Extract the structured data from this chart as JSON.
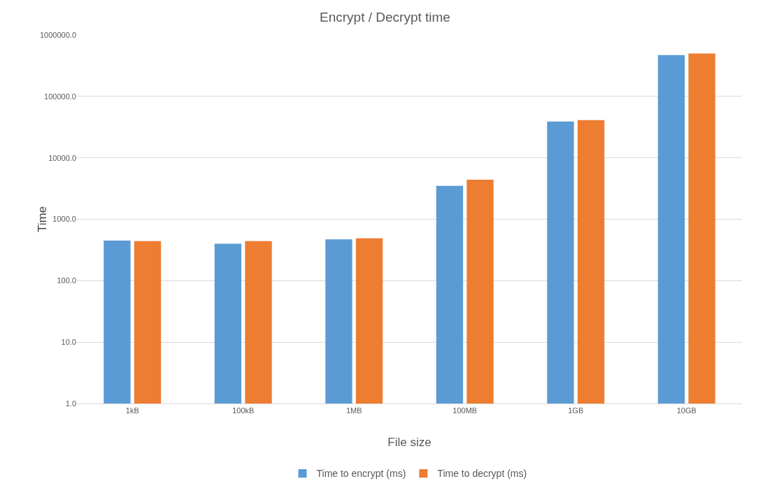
{
  "chart_data": {
    "type": "bar",
    "title": "Encrypt / Decrypt time",
    "xlabel": "File size",
    "ylabel": "Time",
    "categories": [
      "1kB",
      "100kB",
      "1MB",
      "100MB",
      "1GB",
      "10GB"
    ],
    "series": [
      {
        "name": "Time to encrypt (ms)",
        "color": "#5b9bd5",
        "values": [
          450,
          400,
          470,
          3500,
          39000,
          470000
        ]
      },
      {
        "name": "Time to decrypt (ms)",
        "color": "#ed7d31",
        "values": [
          440,
          440,
          490,
          4400,
          41000,
          500000
        ]
      }
    ],
    "log": "y",
    "ylim": [
      1,
      1000000
    ],
    "yticks": [
      {
        "value": 1,
        "label": "1.0"
      },
      {
        "value": 10,
        "label": "10.0"
      },
      {
        "value": 100,
        "label": "100.0"
      },
      {
        "value": 1000,
        "label": "1000.0"
      },
      {
        "value": 10000,
        "label": "10000.0"
      },
      {
        "value": 100000,
        "label": "100000.0"
      },
      {
        "value": 1000000,
        "label": "1000000.0"
      }
    ],
    "grid": "y",
    "legend": "bottom"
  }
}
